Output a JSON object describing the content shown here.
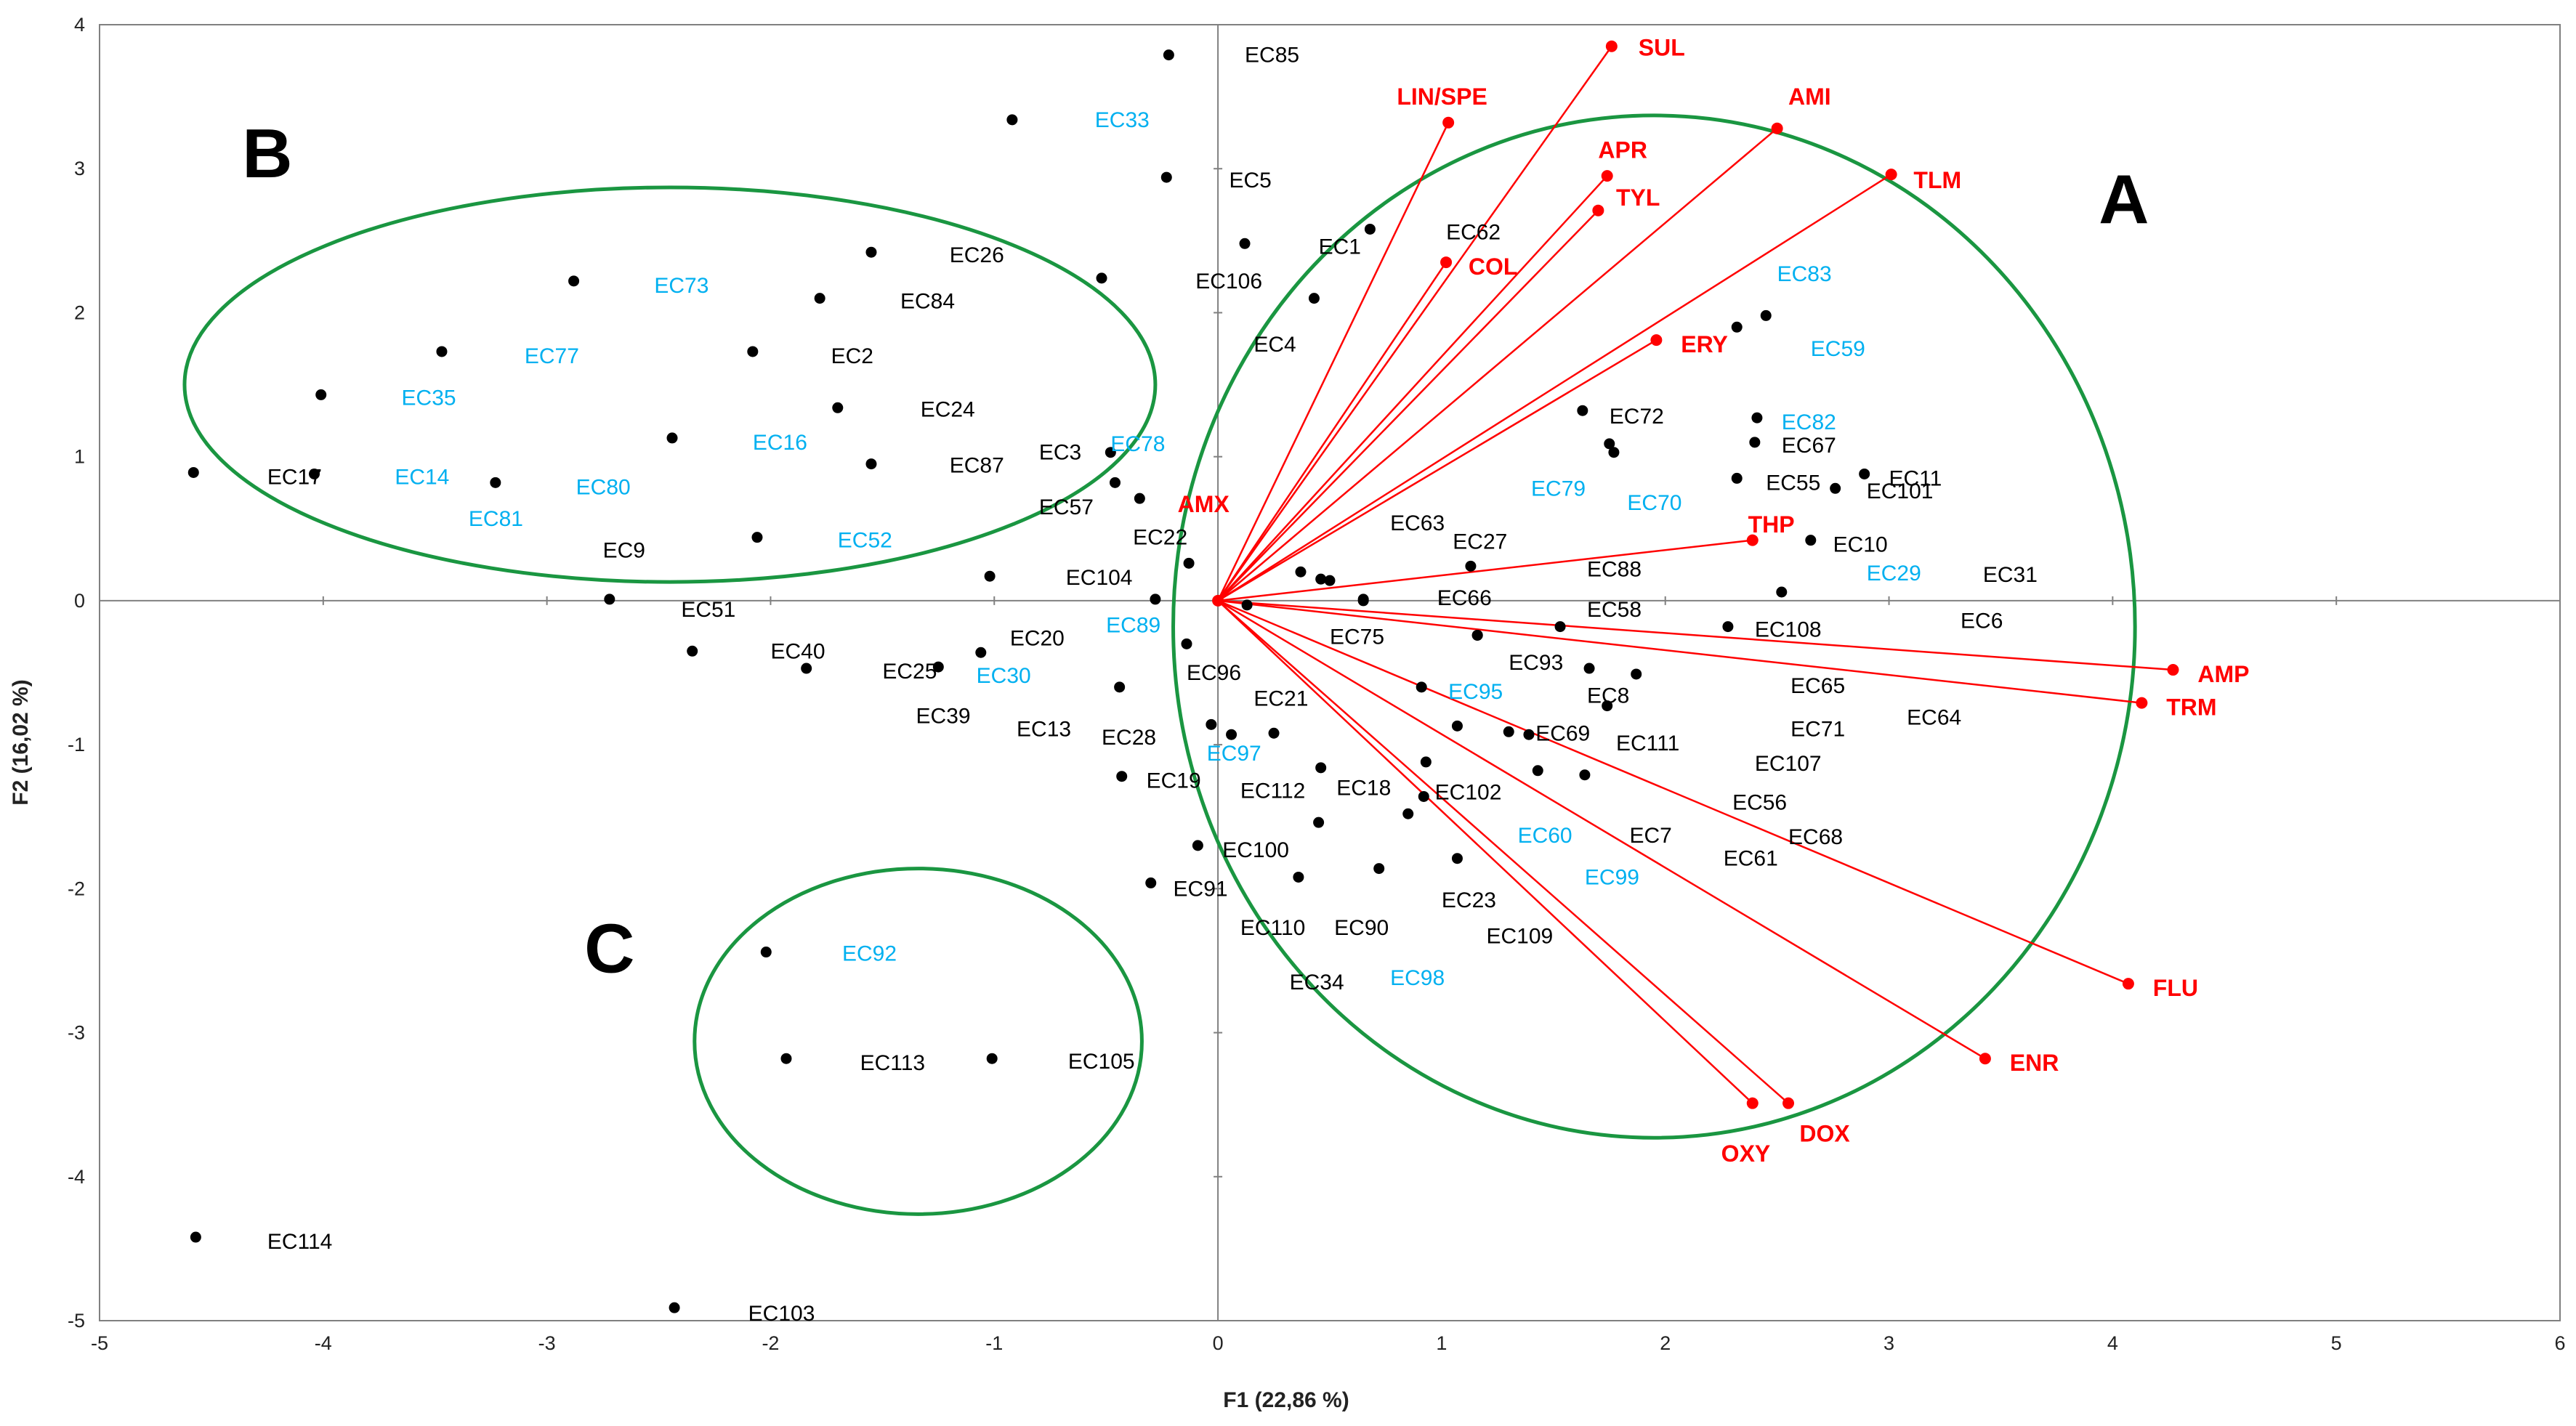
{
  "chart_data": {
    "type": "scatter",
    "subtype": "pca-biplot",
    "title": "",
    "xlabel": "F1 (22,86 %)",
    "ylabel": "F2 (16,02 %)",
    "xlim": [
      -5,
      6
    ],
    "ylim": [
      -5,
      4
    ],
    "xticks": [
      -5,
      -4,
      -3,
      -2,
      -1,
      0,
      1,
      2,
      3,
      4,
      5,
      6
    ],
    "yticks": [
      -5,
      -4,
      -3,
      -2,
      -1,
      0,
      1,
      2,
      3,
      4
    ],
    "grid": false,
    "colors": {
      "frame": "#808080",
      "axis_zero": "#808080",
      "point": "#000000",
      "label_dark": "#000000",
      "label_cyan": "#00b0f0",
      "variable": "#ff0000",
      "ellipse": "#1a9641"
    },
    "observations": [
      {
        "name": "EC85",
        "x": -0.22,
        "y": 3.79,
        "color": "dark",
        "lx": 0.12,
        "ly": 3.79
      },
      {
        "name": "EC33",
        "x": -0.92,
        "y": 3.34,
        "color": "cyan",
        "lx": -0.55,
        "ly": 3.34
      },
      {
        "name": "EC5",
        "x": -0.23,
        "y": 2.94,
        "color": "dark",
        "lx": 0.05,
        "ly": 2.92
      },
      {
        "name": "EC1",
        "x": 0.12,
        "y": 2.48,
        "color": "dark",
        "lx": 0.45,
        "ly": 2.46
      },
      {
        "name": "EC62",
        "x": 0.68,
        "y": 2.58,
        "color": "dark",
        "lx": 1.02,
        "ly": 2.56
      },
      {
        "name": "EC26",
        "x": -1.55,
        "y": 2.42,
        "color": "dark",
        "lx": -1.2,
        "ly": 2.4
      },
      {
        "name": "EC106",
        "x": -0.52,
        "y": 2.24,
        "color": "dark",
        "lx": -0.1,
        "ly": 2.22
      },
      {
        "name": "EC73",
        "x": -2.88,
        "y": 2.22,
        "color": "cyan",
        "lx": -2.52,
        "ly": 2.19
      },
      {
        "name": "EC84",
        "x": -1.78,
        "y": 2.1,
        "color": "dark",
        "lx": -1.42,
        "ly": 2.08
      },
      {
        "name": "EC4",
        "x": 0.43,
        "y": 2.1,
        "color": "dark",
        "lx": 0.16,
        "ly": 1.78
      },
      {
        "name": "EC77",
        "x": -3.47,
        "y": 1.73,
        "color": "cyan",
        "lx": -3.1,
        "ly": 1.7
      },
      {
        "name": "EC2",
        "x": -2.08,
        "y": 1.73,
        "color": "dark",
        "lx": -1.73,
        "ly": 1.7
      },
      {
        "name": "EC35",
        "x": -4.01,
        "y": 1.43,
        "color": "cyan",
        "lx": -3.65,
        "ly": 1.41
      },
      {
        "name": "EC24",
        "x": -1.7,
        "y": 1.34,
        "color": "dark",
        "lx": -1.33,
        "ly": 1.33
      },
      {
        "name": "EC16",
        "x": -2.44,
        "y": 1.13,
        "color": "cyan",
        "lx": -2.08,
        "ly": 1.1
      },
      {
        "name": "EC87",
        "x": -1.55,
        "y": 0.95,
        "color": "dark",
        "lx": -1.2,
        "ly": 0.94
      },
      {
        "name": "EC17",
        "x": -4.58,
        "y": 0.89,
        "color": "dark",
        "lx": -4.25,
        "ly": 0.86
      },
      {
        "name": "EC14",
        "x": -4.04,
        "y": 0.88,
        "color": "cyan",
        "lx": -3.68,
        "ly": 0.86
      },
      {
        "name": "EC80",
        "x": -3.23,
        "y": 0.82,
        "color": "cyan",
        "lx": -2.87,
        "ly": 0.79
      },
      {
        "name": "EC81",
        "x": null,
        "y": null,
        "color": "cyan",
        "lx": -3.35,
        "ly": 0.57
      },
      {
        "name": "EC52",
        "x": -2.06,
        "y": 0.44,
        "color": "cyan",
        "lx": -1.7,
        "ly": 0.42
      },
      {
        "name": "EC9",
        "x": null,
        "y": null,
        "color": "dark",
        "lx": -2.75,
        "ly": 0.35
      },
      {
        "name": "EC51",
        "x": -2.72,
        "y": 0.01,
        "color": "dark",
        "lx": -2.4,
        "ly": -0.06
      },
      {
        "name": "EC40",
        "x": -2.35,
        "y": -0.35,
        "color": "dark",
        "lx": -2.0,
        "ly": -0.35
      },
      {
        "name": "EC25",
        "x": -1.84,
        "y": -0.47,
        "color": "dark",
        "lx": -1.5,
        "ly": -0.49
      },
      {
        "name": "EC30",
        "x": -1.25,
        "y": -0.46,
        "color": "cyan",
        "lx": -1.08,
        "ly": -0.52
      },
      {
        "name": "EC39",
        "x": null,
        "y": null,
        "color": "dark",
        "lx": -1.35,
        "ly": -0.8
      },
      {
        "name": "EC13",
        "x": null,
        "y": null,
        "color": "dark",
        "lx": -0.9,
        "ly": -0.89
      },
      {
        "name": "EC20",
        "x": -1.06,
        "y": -0.36,
        "color": "dark",
        "lx": -0.93,
        "ly": -0.26
      },
      {
        "name": "EC104",
        "x": -1.02,
        "y": 0.17,
        "color": "dark",
        "lx": -0.68,
        "ly": 0.16
      },
      {
        "name": "EC3",
        "x": -0.46,
        "y": 0.82,
        "color": "dark",
        "lx": -0.8,
        "ly": 1.03
      },
      {
        "name": "EC78",
        "x": -0.48,
        "y": 1.03,
        "color": "cyan",
        "lx": -0.48,
        "ly": 1.09
      },
      {
        "name": "EC57",
        "x": -0.35,
        "y": 0.71,
        "color": "dark",
        "lx": -0.8,
        "ly": 0.65
      },
      {
        "name": "EC22",
        "x": -0.13,
        "y": 0.26,
        "color": "dark",
        "lx": -0.38,
        "ly": 0.44
      },
      {
        "name": "EC89",
        "x": -0.28,
        "y": 0.01,
        "color": "cyan",
        "lx": -0.5,
        "ly": -0.17
      },
      {
        "name": "EC96",
        "x": -0.14,
        "y": -0.3,
        "color": "dark",
        "lx": -0.14,
        "ly": -0.5
      },
      {
        "name": "EC28",
        "x": -0.44,
        "y": -0.6,
        "color": "dark",
        "lx": -0.52,
        "ly": -0.95
      },
      {
        "name": "EC19",
        "x": -0.43,
        "y": -1.22,
        "color": "dark",
        "lx": -0.32,
        "ly": -1.25
      },
      {
        "name": "EC97",
        "x": -0.03,
        "y": -0.86,
        "color": "cyan",
        "lx": -0.05,
        "ly": -1.06
      },
      {
        "name": "EC91",
        "x": -0.3,
        "y": -1.96,
        "color": "dark",
        "lx": -0.2,
        "ly": -2.0
      },
      {
        "name": "EC100",
        "x": -0.09,
        "y": -1.7,
        "color": "dark",
        "lx": 0.02,
        "ly": -1.73
      },
      {
        "name": "EC92",
        "x": -2.02,
        "y": -2.44,
        "color": "cyan",
        "lx": -1.68,
        "ly": -2.45
      },
      {
        "name": "EC113",
        "x": -1.93,
        "y": -3.18,
        "color": "dark",
        "lx": -1.6,
        "ly": -3.21
      },
      {
        "name": "EC105",
        "x": -1.01,
        "y": -3.18,
        "color": "dark",
        "lx": -0.67,
        "ly": -3.2
      },
      {
        "name": "EC114",
        "x": -4.57,
        "y": -4.42,
        "color": "dark",
        "lx": -4.25,
        "ly": -4.45
      },
      {
        "name": "EC103",
        "x": -2.43,
        "y": -4.91,
        "color": "dark",
        "lx": -2.1,
        "ly": -4.95
      },
      {
        "name": "EC83",
        "x": 2.45,
        "y": 1.98,
        "color": "cyan",
        "lx": 2.5,
        "ly": 2.27
      },
      {
        "name": "EC59",
        "x": 2.32,
        "y": 1.9,
        "color": "cyan",
        "lx": 2.65,
        "ly": 1.75
      },
      {
        "name": "EC72",
        "x": 1.63,
        "y": 1.32,
        "color": "dark",
        "lx": 1.75,
        "ly": 1.28
      },
      {
        "name": "EC82",
        "x": 2.41,
        "y": 1.27,
        "color": "cyan",
        "lx": 2.52,
        "ly": 1.24
      },
      {
        "name": "EC67",
        "x": 2.4,
        "y": 1.1,
        "color": "dark",
        "lx": 2.52,
        "ly": 1.08
      },
      {
        "name": "EC11",
        "x": 2.89,
        "y": 0.88,
        "color": "dark",
        "lx": 3.0,
        "ly": 0.85
      },
      {
        "name": "EC55",
        "x": 2.32,
        "y": 0.85,
        "color": "dark",
        "lx": 2.45,
        "ly": 0.82
      },
      {
        "name": "EC101",
        "x": 2.76,
        "y": 0.78,
        "color": "dark",
        "lx": 2.9,
        "ly": 0.76
      },
      {
        "name": "EC79",
        "x": null,
        "y": null,
        "color": "cyan",
        "lx": 1.4,
        "ly": 0.78
      },
      {
        "name": "EC70",
        "x": 1.77,
        "y": 1.03,
        "color": "cyan",
        "lx": 1.83,
        "ly": 0.68
      },
      {
        "name": "EC10",
        "x": 2.65,
        "y": 0.42,
        "color": "dark",
        "lx": 2.75,
        "ly": 0.39
      },
      {
        "name": "EC29",
        "x": 2.52,
        "y": 0.06,
        "color": "cyan",
        "lx": 2.9,
        "ly": 0.19
      },
      {
        "name": "EC31",
        "x": null,
        "y": null,
        "color": "dark",
        "lx": 3.42,
        "ly": 0.18
      },
      {
        "name": "EC6",
        "x": null,
        "y": null,
        "color": "dark",
        "lx": 3.32,
        "ly": -0.14
      },
      {
        "name": "EC108",
        "x": 2.28,
        "y": -0.18,
        "color": "dark",
        "lx": 2.4,
        "ly": -0.2
      },
      {
        "name": "EC63",
        "x": null,
        "y": null,
        "color": "dark",
        "lx": 0.77,
        "ly": 0.54
      },
      {
        "name": "EC27",
        "x": 1.13,
        "y": 0.24,
        "color": "dark",
        "lx": 1.05,
        "ly": 0.41
      },
      {
        "name": "EC88",
        "x": null,
        "y": null,
        "color": "dark",
        "lx": 1.65,
        "ly": 0.22
      },
      {
        "name": "EC66",
        "x": 0.65,
        "y": 0.01,
        "color": "dark",
        "lx": 0.98,
        "ly": 0.02
      },
      {
        "name": "EC58",
        "x": 1.53,
        "y": -0.18,
        "color": "dark",
        "lx": 1.65,
        "ly": -0.06
      },
      {
        "name": "EC75",
        "x": 0.46,
        "y": 0.15,
        "color": "dark",
        "lx": 0.5,
        "ly": -0.25
      },
      {
        "name": "EC93",
        "x": 1.16,
        "y": -0.24,
        "color": "dark",
        "lx": 1.3,
        "ly": -0.43
      },
      {
        "name": "EC95",
        "x": 0.91,
        "y": -0.6,
        "color": "cyan",
        "lx": 1.03,
        "ly": -0.63
      },
      {
        "name": "EC8",
        "x": 1.66,
        "y": -0.47,
        "color": "dark",
        "lx": 1.65,
        "ly": -0.66
      },
      {
        "name": "EC21",
        "x": null,
        "y": null,
        "color": "dark",
        "lx": 0.16,
        "ly": -0.68
      },
      {
        "name": "EC69",
        "x": 1.39,
        "y": -0.93,
        "color": "dark",
        "lx": 1.42,
        "ly": -0.92
      },
      {
        "name": "EC111",
        "x": 1.74,
        "y": -0.73,
        "color": "dark",
        "lx": 1.78,
        "ly": -0.99
      },
      {
        "name": "EC65",
        "x": null,
        "y": null,
        "color": "dark",
        "lx": 2.56,
        "ly": -0.59
      },
      {
        "name": "EC71",
        "x": null,
        "y": null,
        "color": "dark",
        "lx": 2.56,
        "ly": -0.89
      },
      {
        "name": "EC64",
        "x": null,
        "y": null,
        "color": "dark",
        "lx": 3.08,
        "ly": -0.81
      },
      {
        "name": "EC107",
        "x": null,
        "y": null,
        "color": "dark",
        "lx": 2.4,
        "ly": -1.13
      },
      {
        "name": "EC56",
        "x": null,
        "y": null,
        "color": "dark",
        "lx": 2.3,
        "ly": -1.4
      },
      {
        "name": "EC68",
        "x": null,
        "y": null,
        "color": "dark",
        "lx": 2.55,
        "ly": -1.64
      },
      {
        "name": "EC61",
        "x": null,
        "y": null,
        "color": "dark",
        "lx": 2.26,
        "ly": -1.79
      },
      {
        "name": "EC112",
        "x": 0.46,
        "y": -1.16,
        "color": "dark",
        "lx": 0.1,
        "ly": -1.32
      },
      {
        "name": "EC18",
        "x": 0.93,
        "y": -1.12,
        "color": "dark",
        "lx": 0.53,
        "ly": -1.3
      },
      {
        "name": "EC102",
        "x": 0.92,
        "y": -1.36,
        "color": "dark",
        "lx": 0.97,
        "ly": -1.33
      },
      {
        "name": "EC60",
        "x": null,
        "y": null,
        "color": "cyan",
        "lx": 1.34,
        "ly": -1.63
      },
      {
        "name": "EC7",
        "x": null,
        "y": null,
        "color": "dark",
        "lx": 1.84,
        "ly": -1.63
      },
      {
        "name": "EC99",
        "x": null,
        "y": null,
        "color": "cyan",
        "lx": 1.64,
        "ly": -1.92
      },
      {
        "name": "EC23",
        "x": 1.07,
        "y": -1.79,
        "color": "dark",
        "lx": 1.0,
        "ly": -2.08
      },
      {
        "name": "EC109",
        "x": null,
        "y": null,
        "color": "dark",
        "lx": 1.2,
        "ly": -2.33
      },
      {
        "name": "EC110",
        "x": 0.36,
        "y": -1.92,
        "color": "dark",
        "lx": 0.1,
        "ly": -2.27
      },
      {
        "name": "EC90",
        "x": 0.72,
        "y": -1.86,
        "color": "dark",
        "lx": 0.52,
        "ly": -2.27
      },
      {
        "name": "EC34",
        "x": null,
        "y": null,
        "color": "dark",
        "lx": 0.32,
        "ly": -2.65
      },
      {
        "name": "EC98",
        "x": null,
        "y": null,
        "color": "cyan",
        "lx": 0.77,
        "ly": -2.62
      }
    ],
    "extra_points": [
      {
        "x": 0.5,
        "y": 0.14
      },
      {
        "x": 0.37,
        "y": 0.2
      },
      {
        "x": 0.65,
        "y": 0.0
      },
      {
        "x": 0.06,
        "y": -0.93
      },
      {
        "x": 0.25,
        "y": -0.92
      },
      {
        "x": 1.16,
        "y": -0.24
      },
      {
        "x": 1.87,
        "y": -0.51
      },
      {
        "x": 1.3,
        "y": -0.91
      },
      {
        "x": 1.07,
        "y": -0.87
      },
      {
        "x": 1.43,
        "y": -1.18
      },
      {
        "x": 1.64,
        "y": -1.21
      },
      {
        "x": 0.85,
        "y": -1.48
      },
      {
        "x": 0.45,
        "y": -1.54
      },
      {
        "x": 1.75,
        "y": 1.09
      },
      {
        "x": 0.13,
        "y": -0.03
      }
    ],
    "variables": [
      {
        "name": "SUL",
        "x": 1.76,
        "y": 3.85,
        "lx": 1.88,
        "ly": 3.84
      },
      {
        "name": "LIN/SPE",
        "x": 1.03,
        "y": 3.32,
        "lx": 0.8,
        "ly": 3.5
      },
      {
        "name": "AMI",
        "x": 2.5,
        "y": 3.28,
        "lx": 2.55,
        "ly": 3.5
      },
      {
        "name": "APR",
        "x": 1.74,
        "y": 2.95,
        "lx": 1.7,
        "ly": 3.13
      },
      {
        "name": "TLM",
        "x": 3.01,
        "y": 2.96,
        "lx": 3.11,
        "ly": 2.92
      },
      {
        "name": "TYL",
        "x": 1.7,
        "y": 2.71,
        "lx": 1.78,
        "ly": 2.8
      },
      {
        "name": "COL",
        "x": 1.02,
        "y": 2.35,
        "lx": 1.12,
        "ly": 2.32
      },
      {
        "name": "ERY",
        "x": 1.96,
        "y": 1.81,
        "lx": 2.07,
        "ly": 1.78
      },
      {
        "name": "AMX",
        "x": 0.0,
        "y": 0.0,
        "lx": -0.18,
        "ly": 0.67
      },
      {
        "name": "THP",
        "x": 2.39,
        "y": 0.42,
        "lx": 2.37,
        "ly": 0.53
      },
      {
        "name": "AMP",
        "x": 4.27,
        "y": -0.48,
        "lx": 4.38,
        "ly": -0.51
      },
      {
        "name": "TRM",
        "x": 4.13,
        "y": -0.71,
        "lx": 4.24,
        "ly": -0.74
      },
      {
        "name": "FLU",
        "x": 4.07,
        "y": -2.66,
        "lx": 4.18,
        "ly": -2.69
      },
      {
        "name": "ENR",
        "x": 3.43,
        "y": -3.18,
        "lx": 3.54,
        "ly": -3.21
      },
      {
        "name": "DOX",
        "x": 2.55,
        "y": -3.49,
        "lx": 2.6,
        "ly": -3.7
      },
      {
        "name": "OXY",
        "x": 2.39,
        "y": -3.49,
        "lx": 2.25,
        "ly": -3.84
      }
    ],
    "groups": [
      {
        "name": "A",
        "cx": 1.95,
        "cy": -0.18,
        "rx": 2.15,
        "ry": 3.55,
        "lx": 4.05,
        "ly": 2.62
      },
      {
        "name": "B",
        "cx": -2.45,
        "cy": 1.5,
        "rx": 2.17,
        "ry": 1.37,
        "lx": -4.25,
        "ly": 2.94
      },
      {
        "name": "C",
        "cx": -1.34,
        "cy": -3.06,
        "rx": 1.0,
        "ry": 1.2,
        "lx": -2.72,
        "ly": -2.58
      }
    ],
    "annotations": [
      "A",
      "B",
      "C"
    ]
  }
}
